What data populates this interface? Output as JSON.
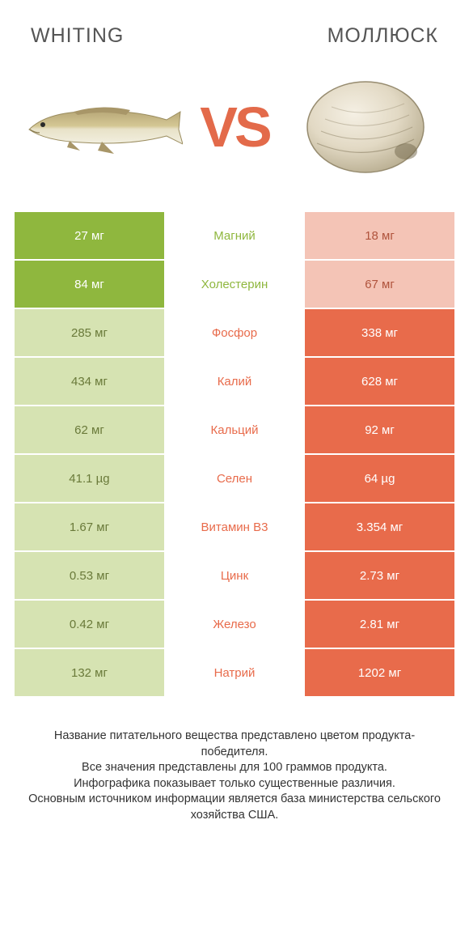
{
  "header": {
    "left_title": "WHITING",
    "right_title": "МОЛЛЮСК",
    "vs": "VS"
  },
  "colors": {
    "green_bright": "#8fb73e",
    "green_dim": "#d6e3b2",
    "orange_bright": "#e86b4b",
    "orange_dim": "#f4c4b6",
    "vs_color": "#e36a4a"
  },
  "rows": [
    {
      "left": "27 мг",
      "label": "Магний",
      "right": "18 мг",
      "winner": "left"
    },
    {
      "left": "84 мг",
      "label": "Холестерин",
      "right": "67 мг",
      "winner": "left"
    },
    {
      "left": "285 мг",
      "label": "Фосфор",
      "right": "338 мг",
      "winner": "right"
    },
    {
      "left": "434 мг",
      "label": "Калий",
      "right": "628 мг",
      "winner": "right"
    },
    {
      "left": "62 мг",
      "label": "Кальций",
      "right": "92 мг",
      "winner": "right"
    },
    {
      "left": "41.1 µg",
      "label": "Селен",
      "right": "64 µg",
      "winner": "right"
    },
    {
      "left": "1.67 мг",
      "label": "Витамин B3",
      "right": "3.354 мг",
      "winner": "right"
    },
    {
      "left": "0.53 мг",
      "label": "Цинк",
      "right": "2.73 мг",
      "winner": "right"
    },
    {
      "left": "0.42 мг",
      "label": "Железо",
      "right": "2.81 мг",
      "winner": "right"
    },
    {
      "left": "132 мг",
      "label": "Натрий",
      "right": "1202 мг",
      "winner": "right"
    }
  ],
  "footer": {
    "l1": "Название питательного вещества представлено цветом продукта-победителя.",
    "l2": "Все значения представлены для 100 граммов продукта.",
    "l3": "Инфографика показывает только существенные различия.",
    "l4": "Основным источником информации является база министерства сельского хозяйства США."
  }
}
